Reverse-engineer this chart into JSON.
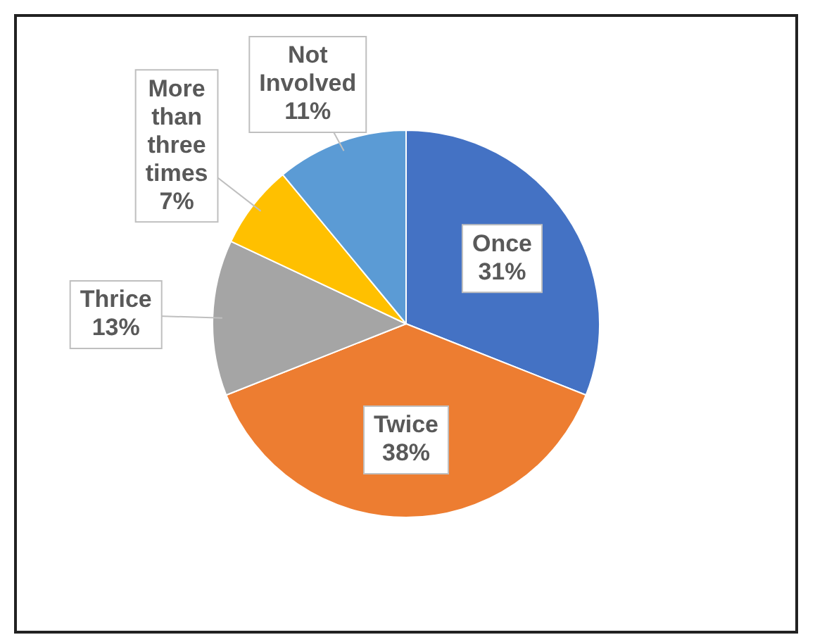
{
  "chart_data": {
    "type": "pie",
    "categories": [
      "Once",
      "Twice",
      "Thrice",
      "More than three times",
      "Not Involved"
    ],
    "values": [
      31,
      38,
      13,
      7,
      11
    ],
    "value_labels": [
      "31%",
      "38%",
      "13%",
      "7%",
      "11%"
    ],
    "colors": [
      "#4472c4",
      "#ed7d31",
      "#a5a5a5",
      "#ffc000",
      "#5b9bd5"
    ],
    "legend": false
  }
}
